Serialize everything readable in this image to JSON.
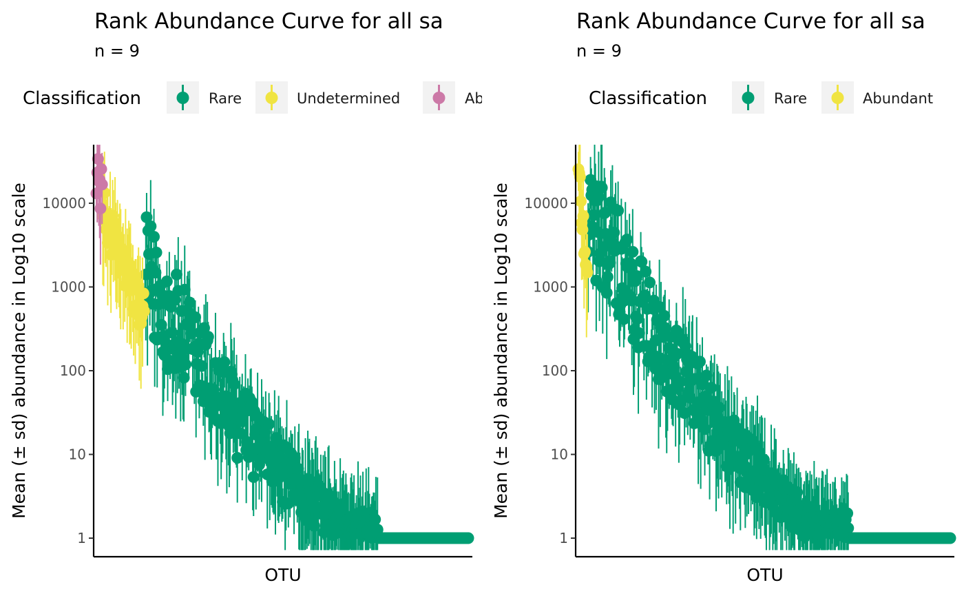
{
  "chart_data": [
    {
      "type": "scatter",
      "title": "Rank Abundance Curve for all sa",
      "subtitle": "n =  9",
      "xlabel": "OTU",
      "ylabel": "Mean (± sd) abundance in Log10 scale",
      "yscale": "log10",
      "ylim": [
        0.6,
        50000
      ],
      "yticks": [
        1,
        10,
        100,
        1000,
        10000
      ],
      "ytick_labels": [
        "1",
        "10",
        "100",
        "1000",
        "10000"
      ],
      "grid": false,
      "legend": {
        "title": "Classification",
        "placement": "top",
        "entries": [
          {
            "label": "Rare",
            "color": "#009E73"
          },
          {
            "label": "Undetermined",
            "color": "#F0E442"
          },
          {
            "label": "Ab",
            "color": "#CC79A7"
          }
        ]
      },
      "n_otus": 460,
      "series": [
        {
          "name": "Abundant",
          "color": "#CC79A7",
          "ranks": [
            1,
            8
          ],
          "mean_range": [
            13000,
            24000
          ]
        },
        {
          "name": "Undetermined",
          "color": "#F0E442",
          "ranks": [
            9,
            60
          ],
          "mean_range": [
            420,
            8000
          ]
        },
        {
          "name": "Rare",
          "color": "#009E73",
          "ranks": [
            61,
            460
          ],
          "mean_range": [
            1,
            1000
          ]
        }
      ]
    },
    {
      "type": "scatter",
      "title": "Rank Abundance Curve for all sa",
      "subtitle": "n =  9",
      "xlabel": "OTU",
      "ylabel": "Mean (± sd) abundance in Log10 scale",
      "yscale": "log10",
      "ylim": [
        0.6,
        50000
      ],
      "yticks": [
        1,
        10,
        100,
        1000,
        10000
      ],
      "ytick_labels": [
        "1",
        "10",
        "100",
        "1000",
        "10000"
      ],
      "grid": false,
      "legend": {
        "title": "Classification",
        "placement": "top",
        "entries": [
          {
            "label": "Rare",
            "color": "#009E73"
          },
          {
            "label": "Abundant",
            "color": "#F0E442"
          }
        ]
      },
      "n_otus": 460,
      "series": [
        {
          "name": "Abundant",
          "color": "#F0E442",
          "ranks": [
            1,
            12
          ],
          "mean_range": [
            1500,
            24000
          ]
        },
        {
          "name": "Rare",
          "color": "#009E73",
          "ranks": [
            13,
            460
          ],
          "mean_range": [
            1,
            6300
          ]
        }
      ]
    }
  ]
}
